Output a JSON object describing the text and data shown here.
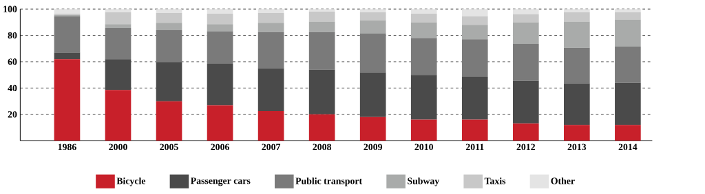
{
  "chart_data": {
    "type": "bar",
    "stacked": true,
    "categories": [
      "1986",
      "2000",
      "2005",
      "2006",
      "2007",
      "2008",
      "2009",
      "2010",
      "2011",
      "2012",
      "2013",
      "2014"
    ],
    "series": [
      {
        "name": "Bicycle",
        "color": "#c8202a",
        "values": [
          62,
          38.5,
          30,
          27,
          22.5,
          20,
          18,
          16,
          16,
          13,
          12,
          12
        ]
      },
      {
        "name": "Passenger cars",
        "color": "#4a4a4a",
        "values": [
          5,
          23.5,
          29.5,
          31.5,
          32.5,
          34,
          34,
          34,
          32.5,
          32.5,
          31.5,
          32
        ]
      },
      {
        "name": "Public transport",
        "color": "#7a7a7a",
        "values": [
          27.5,
          23.5,
          24.5,
          24.5,
          27.5,
          28.5,
          29.5,
          28,
          28.5,
          28,
          27,
          27.5
        ]
      },
      {
        "name": "Subway",
        "color": "#a9abaa",
        "values": [
          1,
          3,
          5.5,
          5.5,
          7,
          8,
          10,
          12,
          11,
          16.5,
          20,
          20.5
        ]
      },
      {
        "name": "Taxis",
        "color": "#c8c8c8",
        "values": [
          1,
          9,
          7.5,
          8,
          7.5,
          7.5,
          6,
          6.5,
          6.5,
          6,
          7,
          5.5
        ]
      },
      {
        "name": "Other",
        "color": "#e4e4e4",
        "values": [
          3.5,
          2.5,
          3,
          3.5,
          3,
          2,
          2.5,
          3.5,
          5.5,
          4,
          2.5,
          2.5
        ]
      }
    ],
    "ylim": [
      0,
      100
    ],
    "yticks": [
      20,
      40,
      60,
      80,
      100
    ],
    "grid": "y",
    "legend": "bottom"
  }
}
